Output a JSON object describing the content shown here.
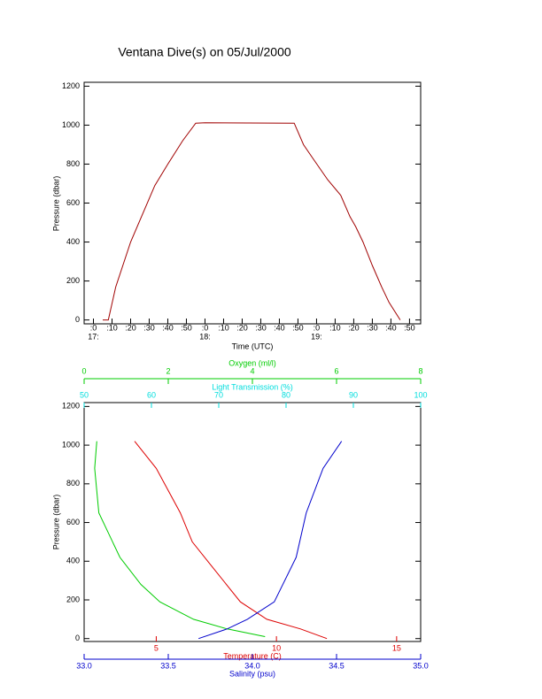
{
  "chart_data": [
    {
      "type": "line",
      "title": "Ventana Dive(s) on 05/Jul/2000",
      "xlabel": "Time (UTC)",
      "ylabel": "Pressure (dbar)",
      "xlim": [
        -5,
        176
      ],
      "ylim": [
        1220,
        -20
      ],
      "xticks": [
        {
          "value": 0,
          "label": ":0"
        },
        {
          "value": 10,
          "label": ":10"
        },
        {
          "value": 20,
          "label": ":20"
        },
        {
          "value": 30,
          "label": ":30"
        },
        {
          "value": 40,
          "label": ":40"
        },
        {
          "value": 50,
          "label": ":50"
        },
        {
          "value": 60,
          "label": ":0"
        },
        {
          "value": 70,
          "label": ":10"
        },
        {
          "value": 80,
          "label": ":20"
        },
        {
          "value": 90,
          "label": ":30"
        },
        {
          "value": 100,
          "label": ":40"
        },
        {
          "value": 110,
          "label": ":50"
        },
        {
          "value": 120,
          "label": ":0"
        },
        {
          "value": 130,
          "label": ":10"
        },
        {
          "value": 140,
          "label": ":20"
        },
        {
          "value": 150,
          "label": ":30"
        },
        {
          "value": 160,
          "label": ":40"
        },
        {
          "value": 170,
          "label": ":50"
        }
      ],
      "hour_labels": [
        {
          "value": 0,
          "label": "17:"
        },
        {
          "value": 60,
          "label": "18:"
        },
        {
          "value": 120,
          "label": "19:"
        }
      ],
      "yticks": [
        0,
        200,
        400,
        600,
        800,
        1000,
        1200
      ],
      "series": [
        {
          "color": "#a00000",
          "x": [
            5,
            8,
            12,
            20,
            33,
            40,
            48,
            55,
            60,
            108,
            113,
            118,
            126,
            133,
            138,
            141,
            145,
            150,
            155,
            159,
            165
          ],
          "values": [
            0,
            0,
            170,
            400,
            690,
            800,
            920,
            1010,
            1012,
            1010,
            900,
            830,
            720,
            640,
            530,
            480,
            400,
            280,
            170,
            90,
            0
          ]
        }
      ]
    },
    {
      "type": "profile",
      "ylabel": "Pressure (dbar)",
      "ylim": [
        1220,
        -15
      ],
      "yticks": [
        0,
        200,
        400,
        600,
        800,
        1000,
        1200
      ],
      "axes": [
        {
          "label": "Oxygen (ml/l)",
          "color": "#00cc00",
          "position": "top-outer",
          "xlim": [
            0,
            8
          ],
          "xticks": [
            0,
            2,
            4,
            6,
            8
          ]
        },
        {
          "label": "Light Transmission (%)",
          "color": "#00dddd",
          "position": "top",
          "xlim": [
            50,
            100
          ],
          "xticks": [
            50,
            60,
            70,
            80,
            90,
            100
          ]
        },
        {
          "label": "Temperature (C)",
          "color": "#dd0000",
          "position": "bottom",
          "xlim": [
            2,
            16
          ],
          "xticks": [
            5,
            10,
            15
          ]
        },
        {
          "label": "Salinity (psu)",
          "color": "#0000cc",
          "position": "bottom-outer",
          "xlim": [
            33,
            35
          ],
          "xticks": [
            {
              "value": 33,
              "label": "33.0"
            },
            33.5,
            {
              "value": 34,
              "label": "34.0"
            },
            34.5,
            {
              "value": 35,
              "label": "35.0"
            }
          ]
        }
      ],
      "series": [
        {
          "axis": 0,
          "color": "#00cc00",
          "pressure": [
            10,
            50,
            100,
            190,
            280,
            420,
            650,
            880,
            1020
          ],
          "values": [
            4.3,
            3.4,
            2.6,
            1.8,
            1.35,
            0.85,
            0.35,
            0.25,
            0.3
          ]
        },
        {
          "axis": 2,
          "color": "#dd0000",
          "pressure": [
            0,
            50,
            100,
            190,
            375,
            500,
            650,
            880,
            1020
          ],
          "values": [
            12.1,
            11.0,
            9.6,
            8.5,
            7.3,
            6.5,
            6.0,
            5.0,
            4.1
          ]
        },
        {
          "axis": 3,
          "color": "#0000cc",
          "pressure": [
            0,
            50,
            100,
            190,
            420,
            650,
            880,
            1020
          ],
          "values": [
            33.68,
            33.85,
            33.97,
            34.13,
            34.26,
            34.32,
            34.42,
            34.53
          ]
        }
      ]
    }
  ]
}
